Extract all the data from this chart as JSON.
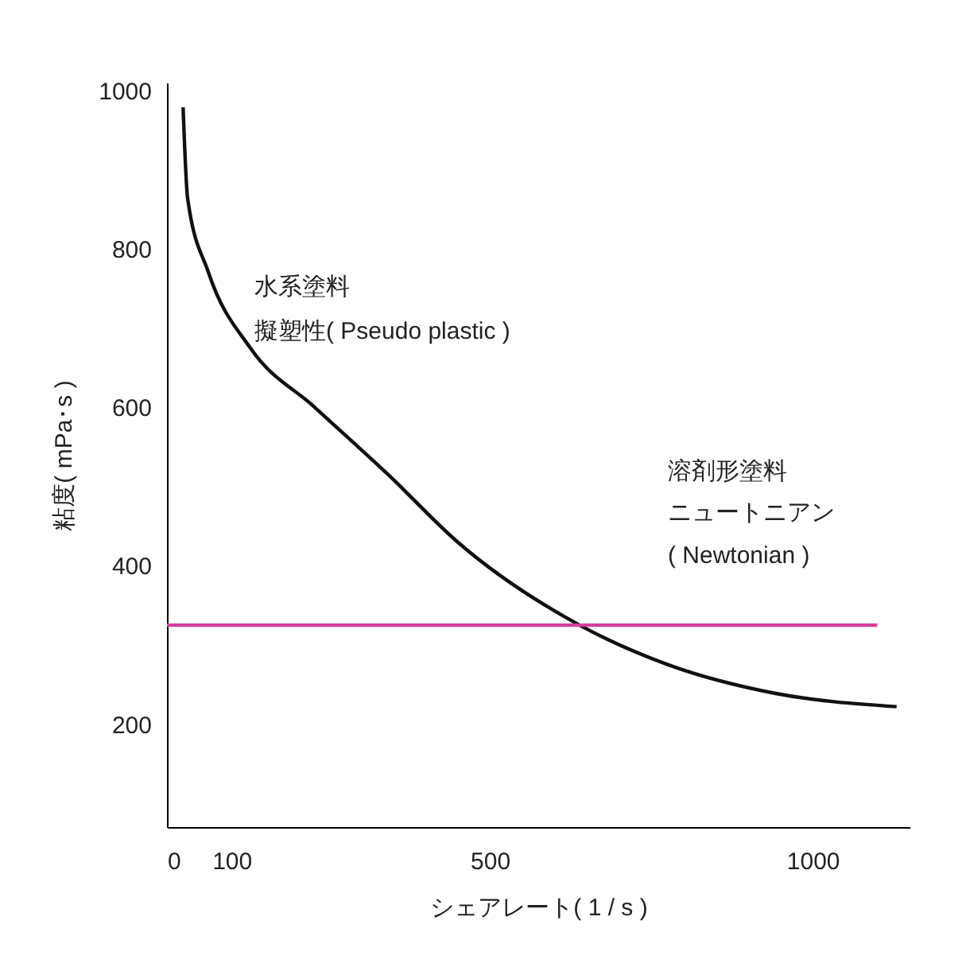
{
  "chart_data": {
    "type": "line",
    "xlabel": "シェアレート( 1 / s )",
    "ylabel": "粘度( mPa･s )",
    "xlim": [
      0,
      1150
    ],
    "xticks": [
      0,
      100,
      500,
      1000
    ],
    "ylim": [
      70,
      1010
    ],
    "yticks": [
      200,
      400,
      600,
      800,
      1000
    ],
    "grid": false,
    "marker": "none",
    "line_style": "solid",
    "series": [
      {
        "color": "#111111",
        "x": [
          25,
          32,
          64,
          130,
          229,
          344,
          450,
          639,
          776,
          941,
          1130
        ],
        "values": [
          979,
          864,
          771,
          674,
          600,
          514,
          430,
          325,
          275,
          239,
          222
        ]
      },
      {
        "color": "#d63c9b",
        "x": [
          0,
          1100
        ],
        "values": [
          325,
          325
        ]
      }
    ],
    "annotations": [
      "水系塗料",
      "擬塑性( Pseudo plastic )",
      "溶剤形塗料",
      "ニュートニアン",
      "( Newtonian )"
    ]
  }
}
